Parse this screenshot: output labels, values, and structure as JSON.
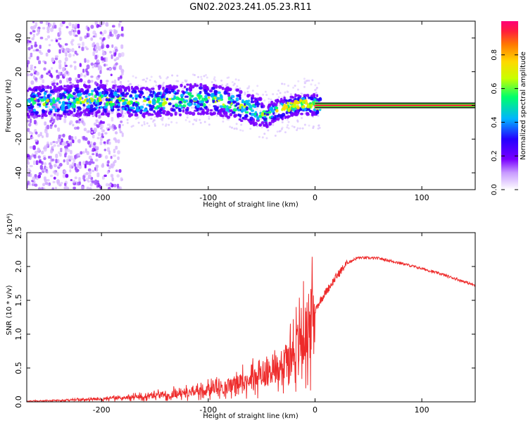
{
  "title": "GN02.2023.241.05.23.R11",
  "colors": {
    "snr_line": "#ee2b2b",
    "axis": "#000000",
    "spectral_band": "#f2f2f2"
  },
  "chart_data": [
    {
      "type": "heatmap",
      "xlabel": "Height of straight line (km)",
      "ylabel": "Frequency (Hz)",
      "xlim": [
        -270,
        150
      ],
      "ylim": [
        -50,
        50
      ],
      "x_ticks": [
        -200,
        -100,
        0,
        100
      ],
      "y_ticks": [
        -40,
        -20,
        0,
        20,
        40
      ],
      "colorbar": {
        "label": "Normalized spectral amplitude",
        "range": [
          0,
          1
        ],
        "ticks": [
          "0.0",
          "0.2",
          "0.4",
          "0.6",
          "0.8"
        ],
        "stops": [
          "#ffffff",
          "#7a00ff",
          "#2400ff",
          "#00b4ff",
          "#00ff6a",
          "#c8ff00",
          "#ffd800",
          "#ff7a00",
          "#ff1e3c",
          "#ff0078"
        ]
      },
      "ridge": {
        "x": [
          -270,
          -220,
          -190,
          -160,
          -130,
          -110,
          -90,
          -70,
          -55,
          -45,
          -40,
          -30,
          -20,
          -10,
          0,
          50,
          150
        ],
        "y": [
          2,
          3,
          3,
          2,
          3,
          4,
          3,
          0,
          -3,
          -7,
          -4,
          -2,
          0,
          1,
          0,
          0,
          0
        ]
      },
      "legend": "none"
    },
    {
      "type": "line",
      "xlabel": "Height of straight line (km)",
      "ylabel": "SNR (10 * v/v)",
      "y_multiplier": "(x10⁴)",
      "xlim": [
        -270,
        150
      ],
      "ylim": [
        0,
        2.5
      ],
      "x_ticks": [
        -200,
        -100,
        0,
        100
      ],
      "y_ticks": [
        "0.0",
        "0.5",
        "1.0",
        "1.5",
        "2.0",
        "2.5"
      ],
      "series": [
        {
          "x": [
            -270,
            -240,
            -200,
            -180,
            -160,
            -140,
            -120,
            -100,
            -80,
            -60,
            -40,
            -25,
            -15,
            -5,
            0,
            5,
            10,
            20,
            30,
            40,
            60,
            80,
            100,
            120,
            150
          ],
          "y": [
            0.01,
            0.02,
            0.04,
            0.06,
            0.08,
            0.11,
            0.14,
            0.18,
            0.24,
            0.33,
            0.45,
            0.65,
            0.85,
            1.1,
            1.35,
            1.5,
            1.62,
            1.85,
            2.05,
            2.13,
            2.12,
            2.05,
            1.97,
            1.88,
            1.72
          ]
        }
      ],
      "legend": "none"
    }
  ]
}
